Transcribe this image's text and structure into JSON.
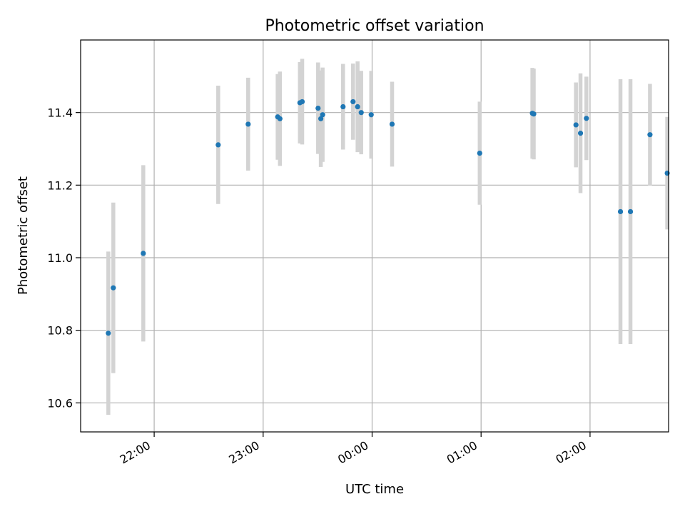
{
  "chart_data": {
    "type": "scatter",
    "title": "Photometric offset variation",
    "xlabel": "UTC time",
    "ylabel": "Photometric offset",
    "x_ticks": [
      "22:00",
      "23:00",
      "00:00",
      "01:00",
      "02:00"
    ],
    "y_ticks": [
      "10.6",
      "10.8",
      "11.0",
      "11.2",
      "11.4"
    ],
    "x_tick_values": [
      "21:59:30",
      "22:59:30",
      "23:59:30",
      "00:59:30",
      "01:59:30"
    ],
    "y_tick_values": [
      10.6,
      10.8,
      11.0,
      11.2,
      11.4
    ],
    "xlim": [
      "21:19:00",
      "02:42:45"
    ],
    "ylim": [
      10.52,
      11.6
    ],
    "grid": true,
    "colors": {
      "marker": "#1f77b4",
      "errorbar": "#d3d3d3",
      "grid": "#b0b0b0"
    },
    "series": [
      {
        "points": [
          {
            "x": "21:34:15",
            "y": 10.792,
            "err": 0.225
          },
          {
            "x": "21:37:00",
            "y": 10.917,
            "err": 0.235
          },
          {
            "x": "21:53:30",
            "y": 11.012,
            "err": 0.243
          },
          {
            "x": "22:34:45",
            "y": 11.311,
            "err": 0.163
          },
          {
            "x": "22:51:15",
            "y": 11.368,
            "err": 0.128
          },
          {
            "x": "23:07:30",
            "y": 11.388,
            "err": 0.118
          },
          {
            "x": "23:08:45",
            "y": 11.383,
            "err": 0.13
          },
          {
            "x": "23:19:45",
            "y": 11.427,
            "err": 0.112
          },
          {
            "x": "23:21:00",
            "y": 11.43,
            "err": 0.118
          },
          {
            "x": "23:29:45",
            "y": 11.412,
            "err": 0.126
          },
          {
            "x": "23:31:15",
            "y": 11.383,
            "err": 0.133
          },
          {
            "x": "23:32:15",
            "y": 11.394,
            "err": 0.13
          },
          {
            "x": "23:43:30",
            "y": 11.416,
            "err": 0.118
          },
          {
            "x": "23:49:00",
            "y": 11.43,
            "err": 0.105
          },
          {
            "x": "23:51:30",
            "y": 11.416,
            "err": 0.125
          },
          {
            "x": "23:53:30",
            "y": 11.4,
            "err": 0.115
          },
          {
            "x": "23:59:00",
            "y": 11.394,
            "err": 0.121
          },
          {
            "x": "00:10:30",
            "y": 11.368,
            "err": 0.117
          },
          {
            "x": "00:58:45",
            "y": 11.288,
            "err": 0.142
          },
          {
            "x": "01:27:45",
            "y": 11.398,
            "err": 0.125
          },
          {
            "x": "01:28:30",
            "y": 11.396,
            "err": 0.125
          },
          {
            "x": "01:51:45",
            "y": 11.366,
            "err": 0.117
          },
          {
            "x": "01:54:15",
            "y": 11.343,
            "err": 0.165
          },
          {
            "x": "01:57:30",
            "y": 11.384,
            "err": 0.115
          },
          {
            "x": "02:16:15",
            "y": 11.127,
            "err": 0.365
          },
          {
            "x": "02:21:45",
            "y": 11.127,
            "err": 0.365
          },
          {
            "x": "02:32:30",
            "y": 11.339,
            "err": 0.14
          },
          {
            "x": "02:42:00",
            "y": 11.233,
            "err": 0.155
          }
        ]
      }
    ]
  }
}
